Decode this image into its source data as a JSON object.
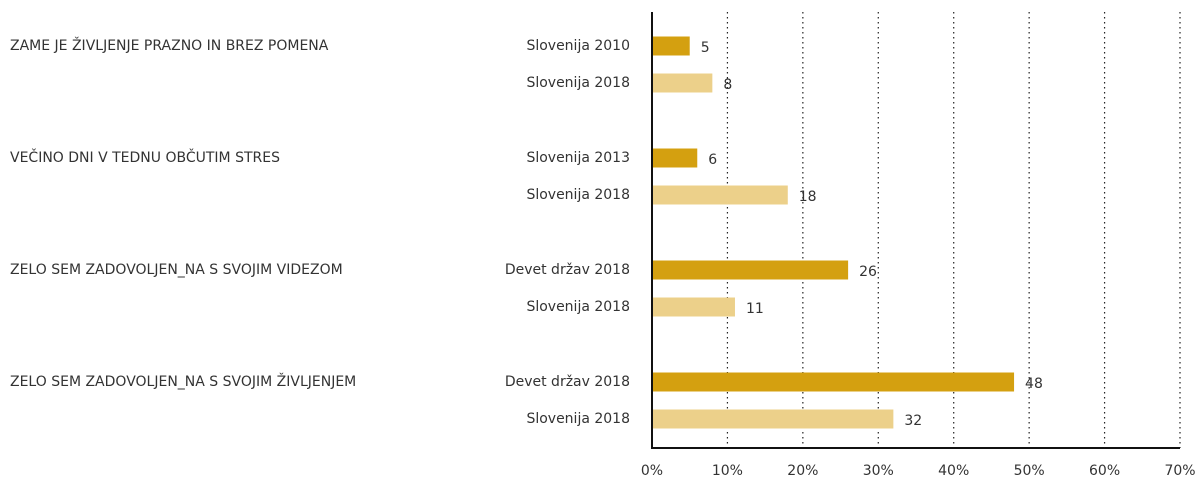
{
  "chart_data": {
    "type": "grouped-hbar",
    "colors": [
      "#d4a010",
      "#ecd08a"
    ],
    "groups": [
      {
        "label": "ZAME JE ŽIVLJENJE PRAZNO IN BREZ POMENA",
        "bars": [
          {
            "label": "Slovenija 2010",
            "value": 5
          },
          {
            "label": "Slovenija 2018",
            "value": 8
          }
        ]
      },
      {
        "label": "VEČINO DNI V TEDNU OBČUTIM STRES",
        "bars": [
          {
            "label": "Slovenija 2013",
            "value": 6
          },
          {
            "label": "Slovenija 2018",
            "value": 18
          }
        ]
      },
      {
        "label": "ZELO SEM ZADOVOLJEN_NA S SVOJIM VIDEZOM",
        "bars": [
          {
            "label": "Devet držav 2018",
            "value": 26
          },
          {
            "label": "Slovenija 2018",
            "value": 11
          }
        ]
      },
      {
        "label": "ZELO SEM ZADOVOLJEN_NA S SVOJIM ŽIVLJENJEM",
        "bars": [
          {
            "label": "Devet držav 2018",
            "value": 48
          },
          {
            "label": "Slovenija 2018",
            "value": 32
          }
        ]
      }
    ],
    "xlim": [
      0,
      70
    ],
    "xticks": [
      {
        "value": 0,
        "label": "0%"
      },
      {
        "value": 10,
        "label": "10%"
      },
      {
        "value": 20,
        "label": "20%"
      },
      {
        "value": 30,
        "label": "30%"
      },
      {
        "value": 40,
        "label": "40%"
      },
      {
        "value": 50,
        "label": "50%"
      },
      {
        "value": 60,
        "label": "60%"
      },
      {
        "value": 70,
        "label": "70%"
      }
    ],
    "grid": true
  }
}
